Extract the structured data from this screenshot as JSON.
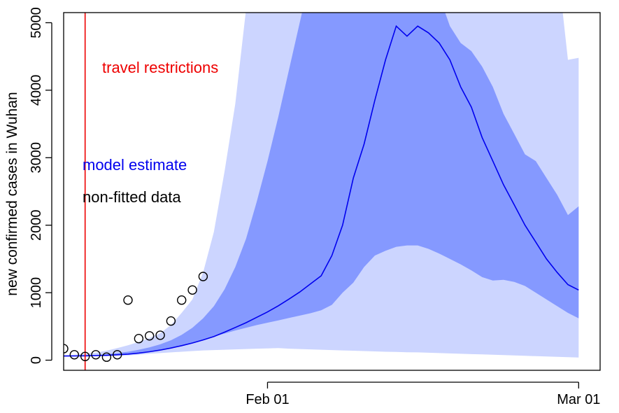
{
  "chart_data": {
    "type": "line",
    "title": "",
    "xlabel": "",
    "ylabel": "new confirmed cases in Wuhan",
    "xlim": [
      "2020-01-13",
      "2020-03-03"
    ],
    "ylim": [
      -150,
      5150
    ],
    "x_ticks": [
      {
        "date": "2020-02-01",
        "label": "Feb 01"
      },
      {
        "date": "2020-03-01",
        "label": "Mar 01"
      }
    ],
    "y_ticks": [
      0,
      1000,
      2000,
      3000,
      4000,
      5000
    ],
    "y_tick_labels": [
      "0",
      "1000",
      "2000",
      "3000",
      "4000",
      "5000"
    ],
    "grid": false,
    "colors": {
      "outer_band": "#ccd5ff",
      "inner_band": "#8599ff",
      "estimate_line": "#0000ee",
      "restriction_line": "#ee0000",
      "points": "#000000"
    },
    "x": [
      "2020-01-13",
      "2020-01-14",
      "2020-01-15",
      "2020-01-16",
      "2020-01-17",
      "2020-01-18",
      "2020-01-19",
      "2020-01-20",
      "2020-01-21",
      "2020-01-22",
      "2020-01-23",
      "2020-01-24",
      "2020-01-25",
      "2020-01-26",
      "2020-01-27",
      "2020-01-28",
      "2020-01-29",
      "2020-01-30",
      "2020-01-31",
      "2020-02-01",
      "2020-02-02",
      "2020-02-03",
      "2020-02-04",
      "2020-02-05",
      "2020-02-06",
      "2020-02-07",
      "2020-02-08",
      "2020-02-09",
      "2020-02-10",
      "2020-02-11",
      "2020-02-12",
      "2020-02-13",
      "2020-02-14",
      "2020-02-15",
      "2020-02-16",
      "2020-02-17",
      "2020-02-18",
      "2020-02-19",
      "2020-02-20",
      "2020-02-21",
      "2020-02-22",
      "2020-02-23",
      "2020-02-24",
      "2020-02-25",
      "2020-02-26",
      "2020-02-27",
      "2020-02-28",
      "2020-02-29",
      "2020-03-01"
    ],
    "series": [
      {
        "role": "outer_band",
        "lower": [
          55,
          55,
          55,
          58,
          60,
          65,
          70,
          80,
          95,
          105,
          115,
          125,
          135,
          145,
          150,
          155,
          160,
          165,
          170,
          175,
          180,
          170,
          165,
          160,
          155,
          150,
          145,
          140,
          135,
          130,
          125,
          122,
          118,
          115,
          110,
          105,
          100,
          95,
          90,
          85,
          80,
          75,
          70,
          65,
          60,
          55,
          50,
          45,
          40
        ],
        "upper": [
          70,
          80,
          95,
          110,
          140,
          180,
          220,
          270,
          330,
          400,
          520,
          700,
          900,
          1300,
          1900,
          2800,
          3800,
          5200,
          6500,
          7500,
          8500,
          9500,
          10000,
          10500,
          11000,
          11000,
          11000,
          11000,
          11000,
          11000,
          11000,
          11000,
          11000,
          11000,
          11000,
          11000,
          11000,
          11000,
          11000,
          10500,
          10000,
          9600,
          9200,
          8600,
          7900,
          7000,
          5900,
          4450,
          4480
        ]
      },
      {
        "role": "inner_band",
        "lower": [
          62,
          63,
          65,
          68,
          72,
          80,
          90,
          105,
          125,
          150,
          180,
          215,
          255,
          300,
          350,
          395,
          440,
          480,
          520,
          555,
          590,
          625,
          660,
          695,
          740,
          820,
          1000,
          1150,
          1380,
          1550,
          1620,
          1680,
          1700,
          1700,
          1650,
          1580,
          1500,
          1420,
          1330,
          1230,
          1180,
          1190,
          1160,
          1100,
          1000,
          900,
          800,
          700,
          620
        ],
        "upper": [
          65,
          67,
          72,
          78,
          90,
          105,
          125,
          155,
          190,
          235,
          295,
          375,
          480,
          620,
          800,
          1050,
          1380,
          1800,
          2350,
          2950,
          3600,
          4300,
          5000,
          5700,
          6300,
          6800,
          7100,
          7300,
          7400,
          7400,
          7300,
          7100,
          6800,
          6400,
          5900,
          5400,
          4950,
          4700,
          4580,
          4350,
          4050,
          3650,
          3350,
          3050,
          2950,
          2700,
          2450,
          2150,
          2280
        ]
      },
      {
        "role": "estimate",
        "name": "model estimate",
        "values": [
          62,
          63,
          65,
          68,
          72,
          80,
          90,
          105,
          125,
          150,
          180,
          215,
          255,
          300,
          350,
          415,
          485,
          555,
          635,
          715,
          805,
          905,
          1010,
          1130,
          1250,
          1550,
          2000,
          2700,
          3200,
          3850,
          4450,
          4950,
          4800,
          4950,
          4850,
          4700,
          4450,
          4050,
          3750,
          3300,
          2950,
          2600,
          2300,
          2000,
          1750,
          1500,
          1300,
          1120,
          1040
        ]
      }
    ],
    "points": {
      "name": "non-fitted data",
      "x": [
        "2020-01-13",
        "2020-01-14",
        "2020-01-15",
        "2020-01-16",
        "2020-01-17",
        "2020-01-18",
        "2020-01-19",
        "2020-01-20",
        "2020-01-21",
        "2020-01-22",
        "2020-01-23",
        "2020-01-24",
        "2020-01-25",
        "2020-01-26",
        "2020-01-27",
        "2020-01-28"
      ],
      "y": [
        170,
        80,
        55,
        80,
        45,
        80,
        890,
        320,
        360,
        370,
        580,
        890,
        1040,
        1240,
        null,
        null
      ]
    },
    "vline": {
      "date": "2020-01-15",
      "label": "travel restrictions"
    },
    "annotations": {
      "travel": "travel restrictions",
      "model": "model estimate",
      "data": "non-fitted data"
    }
  }
}
